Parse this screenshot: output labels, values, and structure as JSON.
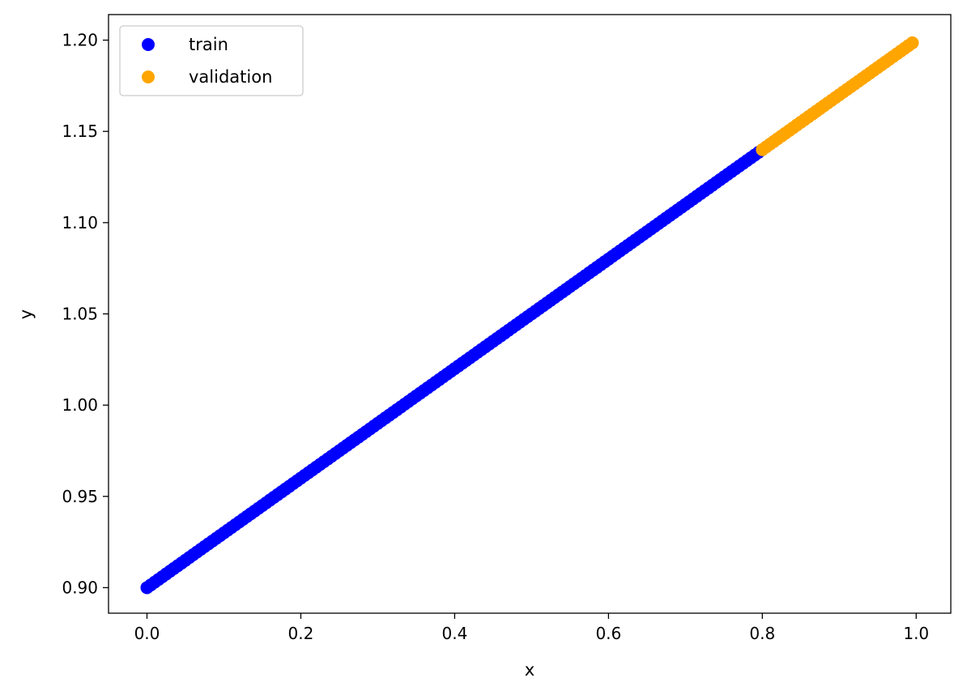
{
  "chart_data": {
    "type": "scatter",
    "title": "",
    "xlabel": "x",
    "ylabel": "y",
    "xlim": [
      -0.05,
      1.045
    ],
    "ylim": [
      0.886,
      1.214
    ],
    "xticks": [
      0.0,
      0.2,
      0.4,
      0.6,
      0.8,
      1.0
    ],
    "xtick_labels": [
      "0.0",
      "0.2",
      "0.4",
      "0.6",
      "0.8",
      "1.0"
    ],
    "yticks": [
      0.9,
      0.95,
      1.0,
      1.05,
      1.1,
      1.15,
      1.2
    ],
    "ytick_labels": [
      "0.90",
      "0.95",
      "1.00",
      "1.05",
      "1.10",
      "1.15",
      "1.20"
    ],
    "grid": false,
    "legend_position": "upper-left",
    "series": [
      {
        "name": "train",
        "color": "#0000ff",
        "x_start": 0.0,
        "x_end": 0.795,
        "x_step": 0.005,
        "y_formula": "0.3*x + 0.9"
      },
      {
        "name": "validation",
        "color": "#ffa500",
        "x_start": 0.8,
        "x_end": 0.995,
        "x_step": 0.005,
        "y_formula": "0.3*x + 0.9"
      }
    ]
  }
}
